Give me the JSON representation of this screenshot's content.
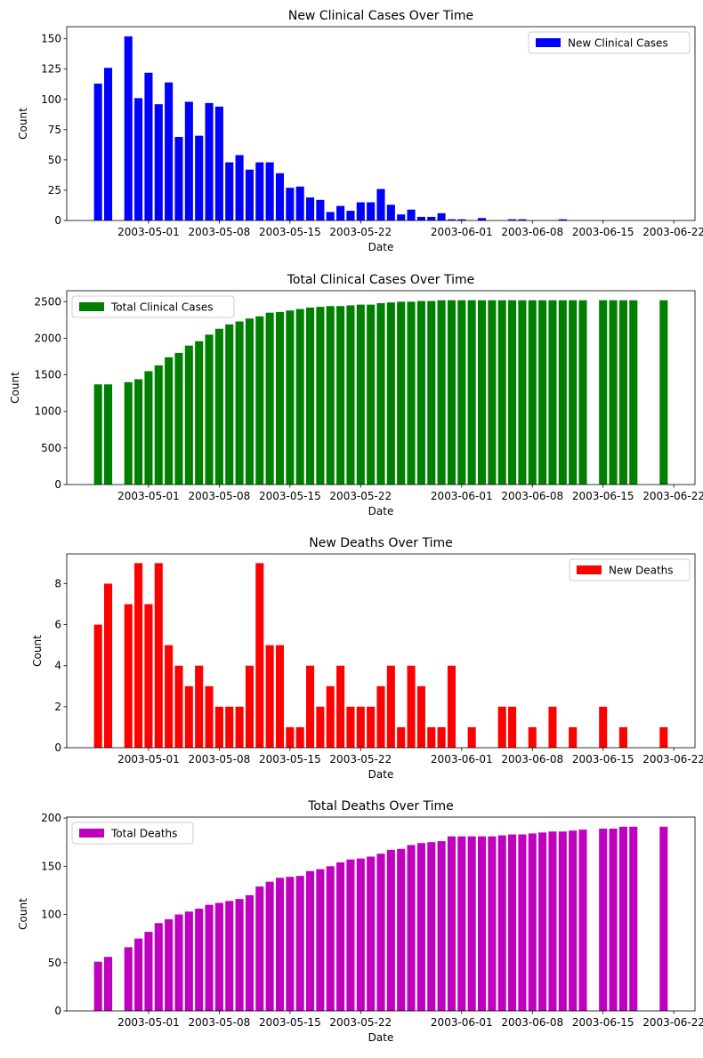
{
  "x_dates": [
    "2003-04-26",
    "2003-04-27",
    "2003-04-29",
    "2003-04-30",
    "2003-05-01",
    "2003-05-02",
    "2003-05-03",
    "2003-05-04",
    "2003-05-05",
    "2003-05-06",
    "2003-05-07",
    "2003-05-08",
    "2003-05-09",
    "2003-05-10",
    "2003-05-11",
    "2003-05-12",
    "2003-05-13",
    "2003-05-14",
    "2003-05-15",
    "2003-05-16",
    "2003-05-17",
    "2003-05-18",
    "2003-05-19",
    "2003-05-20",
    "2003-05-21",
    "2003-05-22",
    "2003-05-23",
    "2003-05-24",
    "2003-05-25",
    "2003-05-26",
    "2003-05-27",
    "2003-05-28",
    "2003-05-29",
    "2003-05-30",
    "2003-05-31",
    "2003-06-01",
    "2003-06-02",
    "2003-06-03",
    "2003-06-04",
    "2003-06-05",
    "2003-06-06",
    "2003-06-07",
    "2003-06-08",
    "2003-06-09",
    "2003-06-10",
    "2003-06-11",
    "2003-06-12",
    "2003-06-13",
    "2003-06-15",
    "2003-06-16",
    "2003-06-17",
    "2003-06-18",
    "2003-06-21"
  ],
  "chart_data": [
    {
      "type": "bar",
      "title": "New Clinical Cases Over Time",
      "xlabel": "Date",
      "ylabel": "Count",
      "ylim": [
        0,
        160
      ],
      "yticks": [
        0,
        25,
        50,
        75,
        100,
        125,
        150
      ],
      "xticks": [
        "2003-05-01",
        "2003-05-08",
        "2003-05-15",
        "2003-05-22",
        "2003-06-01",
        "2003-06-08",
        "2003-06-15",
        "2003-06-22"
      ],
      "legend": "top-right",
      "grid": false,
      "series": [
        {
          "name": "New Clinical Cases",
          "color": "#0000ff",
          "values": [
            113,
            126,
            152,
            101,
            122,
            96,
            114,
            69,
            98,
            70,
            97,
            94,
            48,
            54,
            42,
            48,
            48,
            39,
            27,
            28,
            19,
            17,
            7,
            12,
            8,
            15,
            15,
            26,
            13,
            5,
            9,
            3,
            3,
            6,
            1,
            1,
            0,
            2,
            0,
            0,
            1,
            1,
            0,
            0,
            0,
            1,
            0,
            0,
            0,
            0,
            0,
            0,
            0
          ]
        }
      ]
    },
    {
      "type": "bar",
      "title": "Total Clinical Cases Over Time",
      "xlabel": "Date",
      "ylabel": "Count",
      "ylim": [
        0,
        2650
      ],
      "yticks": [
        0,
        500,
        1000,
        1500,
        2000,
        2500
      ],
      "xticks": [
        "2003-05-01",
        "2003-05-08",
        "2003-05-15",
        "2003-05-22",
        "2003-06-01",
        "2003-06-08",
        "2003-06-15",
        "2003-06-22"
      ],
      "legend": "top-left",
      "grid": false,
      "series": [
        {
          "name": "Total Clinical Cases",
          "color": "#008000",
          "values": [
            1370,
            1370,
            1400,
            1440,
            1550,
            1630,
            1740,
            1800,
            1900,
            1960,
            2050,
            2130,
            2190,
            2230,
            2270,
            2300,
            2350,
            2360,
            2380,
            2400,
            2420,
            2430,
            2440,
            2440,
            2450,
            2460,
            2460,
            2480,
            2490,
            2500,
            2500,
            2510,
            2510,
            2520,
            2520,
            2520,
            2520,
            2520,
            2520,
            2520,
            2520,
            2520,
            2520,
            2520,
            2520,
            2520,
            2520,
            2520,
            2520,
            2520,
            2520,
            2520,
            2520
          ]
        }
      ]
    },
    {
      "type": "bar",
      "title": "New Deaths Over Time",
      "xlabel": "Date",
      "ylabel": "Count",
      "ylim": [
        0,
        9.45
      ],
      "yticks": [
        0,
        2,
        4,
        6,
        8
      ],
      "xticks": [
        "2003-05-01",
        "2003-05-08",
        "2003-05-15",
        "2003-05-22",
        "2003-06-01",
        "2003-06-08",
        "2003-06-15",
        "2003-06-22"
      ],
      "legend": "top-right",
      "grid": false,
      "series": [
        {
          "name": "New Deaths",
          "color": "#ff0000",
          "values": [
            6,
            8,
            7,
            9,
            7,
            9,
            5,
            4,
            3,
            4,
            3,
            2,
            2,
            2,
            4,
            9,
            5,
            5,
            1,
            1,
            4,
            2,
            3,
            4,
            2,
            2,
            2,
            3,
            4,
            1,
            4,
            3,
            1,
            1,
            4,
            0,
            1,
            0,
            0,
            2,
            2,
            0,
            1,
            0,
            2,
            0,
            1,
            0,
            2,
            0,
            1,
            0,
            1
          ]
        }
      ]
    },
    {
      "type": "bar",
      "title": "Total Deaths Over Time",
      "xlabel": "Date",
      "ylabel": "Count",
      "ylim": [
        0,
        201
      ],
      "yticks": [
        0,
        50,
        100,
        150,
        200
      ],
      "xticks": [
        "2003-05-01",
        "2003-05-08",
        "2003-05-15",
        "2003-05-22",
        "2003-06-01",
        "2003-06-08",
        "2003-06-15",
        "2003-06-22"
      ],
      "legend": "top-left",
      "grid": false,
      "series": [
        {
          "name": "Total Deaths",
          "color": "#bf00bf",
          "values": [
            51,
            56,
            66,
            75,
            82,
            91,
            95,
            100,
            103,
            106,
            110,
            112,
            114,
            116,
            120,
            129,
            134,
            138,
            139,
            140,
            145,
            147,
            150,
            154,
            157,
            158,
            160,
            163,
            167,
            168,
            172,
            174,
            175,
            176,
            181,
            181,
            181,
            181,
            181,
            182,
            183,
            183,
            184,
            185,
            186,
            186,
            187,
            188,
            189,
            189,
            191,
            191,
            191
          ]
        }
      ]
    }
  ]
}
